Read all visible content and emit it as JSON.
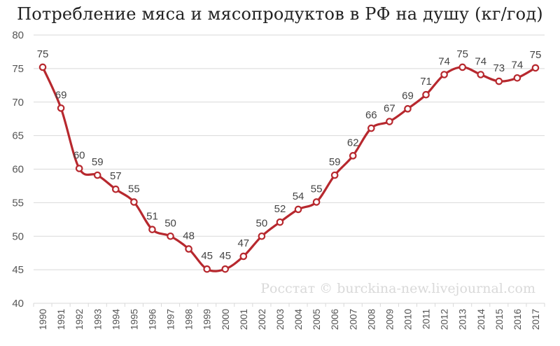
{
  "colors": {
    "line": "#b7282e",
    "marker_fill": "#ffffff",
    "grid": "#d9d9d9",
    "text": "#555555"
  },
  "watermark": "Росстат © burckina-new.livejournal.com",
  "chart_data": {
    "type": "line",
    "title": "Потребление мяса и мясопродуктов в РФ на душу (кг/год)",
    "xlabel": "",
    "ylabel": "",
    "ylim": [
      40,
      80
    ],
    "yticks": [
      40,
      45,
      50,
      55,
      60,
      65,
      70,
      75,
      80
    ],
    "grid": "horizontal",
    "categories": [
      "1990",
      "1991",
      "1992",
      "1993",
      "1994",
      "1995",
      "1996",
      "1997",
      "1998",
      "1999",
      "2000",
      "2001",
      "2002",
      "2003",
      "2004",
      "2005",
      "2006",
      "2007",
      "2008",
      "2009",
      "2010",
      "2011",
      "2012",
      "2013",
      "2014",
      "2015",
      "2016",
      "2017"
    ],
    "plot_values": [
      75.2,
      69.1,
      60.1,
      59.1,
      57.0,
      55.1,
      51.0,
      50.0,
      48.1,
      45.1,
      45.1,
      47.0,
      50.0,
      52.1,
      54.0,
      55.1,
      59.1,
      62.0,
      66.1,
      67.1,
      69.0,
      71.1,
      74.1,
      75.2,
      74.1,
      73.1,
      73.6,
      75.1
    ],
    "series": [
      {
        "values": [
          75,
          69,
          60,
          59,
          57,
          55,
          51,
          50,
          48,
          45,
          45,
          47,
          50,
          52,
          54,
          55,
          59,
          62,
          66,
          67,
          69,
          71,
          74,
          75,
          74,
          73,
          74,
          75
        ]
      }
    ]
  }
}
